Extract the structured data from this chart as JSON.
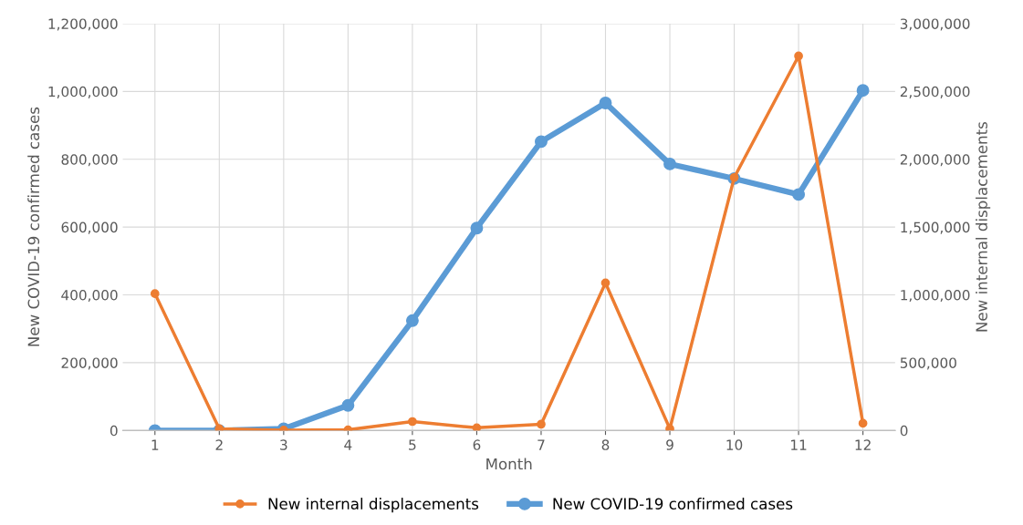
{
  "chart_data": {
    "type": "line",
    "xlabel": "Month",
    "ylabel": "New COVID-19 confirmed cases",
    "y2label": "New internal displacements",
    "categories": [
      "1",
      "2",
      "3",
      "4",
      "5",
      "6",
      "7",
      "8",
      "9",
      "10",
      "11",
      "12"
    ],
    "series": [
      {
        "name": "New internal displacements",
        "color": "#ed7d31",
        "axis": "y2",
        "values": [
          1009000,
          13000,
          3000,
          5000,
          66000,
          20000,
          46000,
          1088000,
          13000,
          1865000,
          2761000,
          53000
        ]
      },
      {
        "name": "New COVID-19 confirmed cases",
        "color": "#5b9bd5",
        "values": [
          0,
          0,
          5000,
          74000,
          324000,
          597000,
          852000,
          966000,
          786000,
          743000,
          696000,
          1003000
        ]
      }
    ],
    "ylim": [
      0,
      1200000
    ],
    "yticks": [
      {
        "value": 0,
        "label": "0"
      },
      {
        "value": 200000,
        "label": "200,000"
      },
      {
        "value": 400000,
        "label": "400,000"
      },
      {
        "value": 600000,
        "label": "600,000"
      },
      {
        "value": 800000,
        "label": "800,000"
      },
      {
        "value": 1000000,
        "label": "1,000,000"
      },
      {
        "value": 1200000,
        "label": "1,200,000"
      }
    ],
    "y2lim": [
      0,
      3000000
    ],
    "y2ticks": [
      {
        "value": 0,
        "label": "0"
      },
      {
        "value": 500000,
        "label": "500,000"
      },
      {
        "value": 1000000,
        "label": "1,000,000"
      },
      {
        "value": 1500000,
        "label": "1,500,000"
      },
      {
        "value": 2000000,
        "label": "2,000,000"
      },
      {
        "value": 2500000,
        "label": "2,500,000"
      },
      {
        "value": 3000000,
        "label": "3,000,000"
      }
    ],
    "grid": true,
    "legend": "bottom",
    "marker": "circle",
    "line_style": "solid"
  }
}
